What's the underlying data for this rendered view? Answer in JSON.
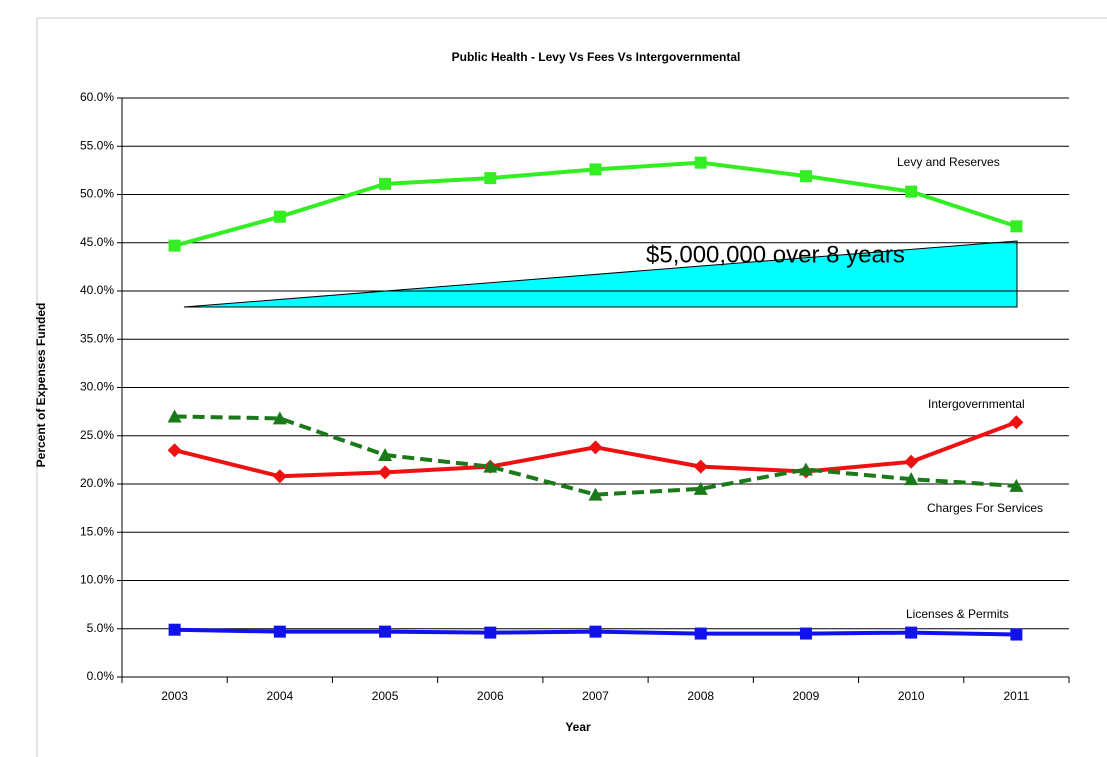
{
  "chart_data": {
    "type": "line",
    "title": "Public Health - Levy Vs Fees Vs Intergovernmental",
    "x_label": "Year",
    "y_label": "Percent of Expenses Funded",
    "categories": [
      "2003",
      "2004",
      "2005",
      "2006",
      "2007",
      "2008",
      "2009",
      "2010",
      "2011"
    ],
    "series": [
      {
        "name": "Levy and Reserves",
        "color": "#33ee22",
        "marker": "square",
        "dashed": false,
        "values": [
          44.7,
          47.7,
          51.1,
          51.7,
          52.6,
          53.3,
          51.9,
          50.3,
          46.7
        ]
      },
      {
        "name": "Intergovernmental",
        "color": "#ee1111",
        "marker": "diamond",
        "dashed": false,
        "values": [
          23.5,
          20.8,
          21.2,
          21.8,
          23.8,
          21.8,
          21.3,
          22.3,
          26.4
        ]
      },
      {
        "name": "Charges For Services",
        "color": "#1a7a1a",
        "marker": "triangle",
        "dashed": true,
        "values": [
          27.0,
          26.8,
          23.0,
          21.8,
          18.9,
          19.5,
          21.5,
          20.5,
          19.8
        ]
      },
      {
        "name": "Licenses & Permits",
        "color": "#1111ee",
        "marker": "square",
        "dashed": false,
        "values": [
          4.9,
          4.7,
          4.7,
          4.6,
          4.7,
          4.5,
          4.5,
          4.6,
          4.4
        ]
      }
    ],
    "annotation": "$5,000,000 over 8 years",
    "ylim": [
      0,
      60
    ],
    "yticks": [
      {
        "value": 0,
        "label": "0.0%"
      },
      {
        "value": 5,
        "label": "5.0%"
      },
      {
        "value": 10,
        "label": "10.0%"
      },
      {
        "value": 15,
        "label": "15.0%"
      },
      {
        "value": 20,
        "label": "20.0%"
      },
      {
        "value": 25,
        "label": "25.0%"
      },
      {
        "value": 30,
        "label": "30.0%"
      },
      {
        "value": 35,
        "label": "35.0%"
      },
      {
        "value": 40,
        "label": "40.0%"
      },
      {
        "value": 45,
        "label": "45.0%"
      },
      {
        "value": 50,
        "label": "50.0%"
      },
      {
        "value": 55,
        "label": "55.0%"
      },
      {
        "value": 60,
        "label": "60.0%"
      }
    ],
    "grid": true
  }
}
